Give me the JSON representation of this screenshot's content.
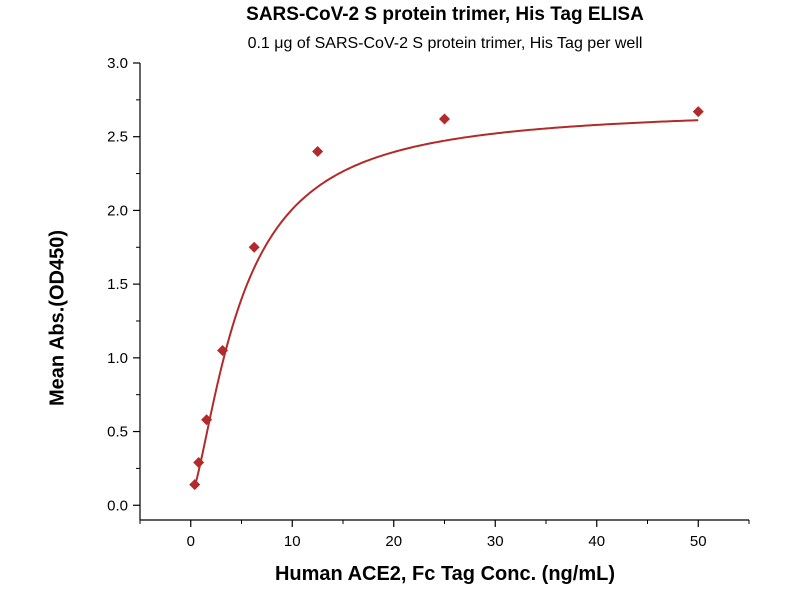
{
  "chart_data": {
    "type": "scatter",
    "title": "SARS-CoV-2 S protein trimer, His Tag ELISA",
    "subtitle": "0.1 μg of SARS-CoV-2 S protein trimer, His Tag per well",
    "xlabel": "Human ACE2, Fc Tag Conc. (ng/mL)",
    "ylabel": "Mean Abs.(OD450)",
    "xlim": [
      -5,
      55
    ],
    "ylim": [
      -0.1,
      3.0
    ],
    "x_ticks": [
      "0",
      "10",
      "20",
      "30",
      "40",
      "50"
    ],
    "y_ticks": [
      "0.0",
      "0.5",
      "1.0",
      "1.5",
      "2.0",
      "2.5",
      "3.0"
    ],
    "grid": false,
    "legend": "none",
    "series": [
      {
        "marker": "diamond",
        "color": "#b22a2a",
        "fit": "4-parameter logistic curve",
        "x": [
          0.39,
          0.78,
          1.56,
          3.13,
          6.25,
          12.5,
          25,
          50
        ],
        "y": [
          0.14,
          0.29,
          0.58,
          1.05,
          1.75,
          2.4,
          2.62,
          2.67
        ]
      }
    ]
  }
}
